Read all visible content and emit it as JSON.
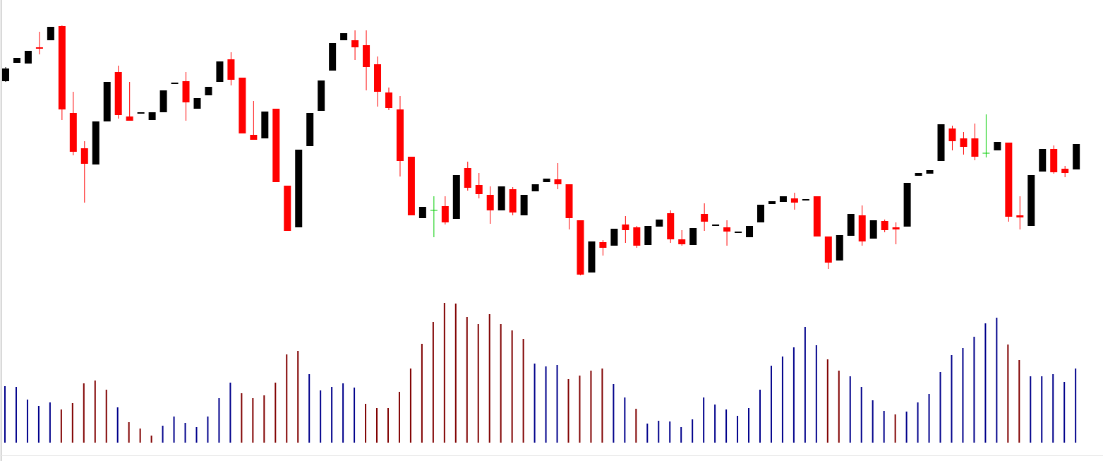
{
  "chart_data": [
    {
      "type": "candlestick",
      "open": [
        538,
        564,
        563,
        586,
        596,
        616,
        493,
        443,
        420,
        481,
        551,
        488,
        493,
        483,
        494,
        535,
        538,
        499,
        518,
        537,
        569,
        543,
        462,
        457,
        499,
        390,
        331,
        446,
        496,
        553,
        596,
        596,
        589,
        562,
        522,
        498,
        431,
        344,
        355,
        361,
        343,
        415,
        391,
        377,
        355,
        385,
        348,
        382,
        395,
        399,
        392,
        341,
        267,
        310,
        305,
        335,
        331,
        306,
        332,
        351,
        314,
        306,
        350,
        333,
        331,
        324,
        317,
        338,
        364,
        367,
        372,
        370,
        375,
        318,
        284,
        319,
        348,
        315,
        340,
        331,
        332,
        404,
        407,
        425,
        471,
        457,
        457,
        436,
        440,
        451,
        348,
        333,
        410,
        442,
        414,
        413
      ],
      "high": [
        558,
        571,
        581,
        608,
        615,
        617,
        523,
        453,
        481,
        537,
        560,
        537,
        494,
        494,
        525,
        536,
        551,
        514,
        530,
        566,
        579,
        543,
        510,
        495,
        499,
        390,
        441,
        493,
        539,
        592,
        606,
        610,
        610,
        573,
        529,
        517,
        431,
        360,
        375,
        375,
        405,
        424,
        408,
        389,
        389,
        388,
        377,
        392,
        400,
        422,
        392,
        341,
        311,
        313,
        329,
        347,
        333,
        333,
        342,
        355,
        327,
        330,
        365,
        335,
        341,
        325,
        333,
        363,
        368,
        375,
        380,
        371,
        375,
        318,
        320,
        350,
        362,
        341,
        342,
        338,
        394,
        408,
        412,
        477,
        475,
        466,
        478,
        491,
        452,
        451,
        375,
        405,
        442,
        447,
        418,
        449
      ],
      "low": [
        537,
        564,
        563,
        576,
        596,
        483,
        433,
        366,
        420,
        481,
        485,
        482,
        493,
        483,
        494,
        535,
        482,
        499,
        518,
        537,
        532,
        464,
        455,
        457,
        395,
        326,
        331,
        446,
        496,
        553,
        596,
        568,
        525,
        502,
        497,
        403,
        348,
        344,
        317,
        335,
        343,
        383,
        372,
        336,
        355,
        348,
        348,
        382,
        395,
        385,
        328,
        263,
        267,
        291,
        305,
        309,
        302,
        306,
        332,
        309,
        305,
        306,
        326,
        333,
        305,
        324,
        317,
        338,
        364,
        367,
        356,
        370,
        318,
        272,
        284,
        319,
        305,
        315,
        324,
        307,
        332,
        404,
        407,
        425,
        440,
        434,
        426,
        430,
        440,
        339,
        328,
        333,
        410,
        407,
        402,
        413
      ],
      "close": [
        556,
        571,
        581,
        584,
        615,
        498,
        438,
        421,
        481,
        537,
        490,
        482,
        494,
        494,
        525,
        536,
        508,
        514,
        530,
        566,
        540,
        464,
        455,
        495,
        395,
        326,
        441,
        493,
        539,
        592,
        606,
        586,
        558,
        523,
        500,
        425,
        348,
        360,
        355,
        338,
        405,
        387,
        378,
        355,
        389,
        352,
        377,
        392,
        400,
        392,
        344,
        264,
        311,
        302,
        329,
        327,
        305,
        333,
        342,
        314,
        307,
        330,
        339,
        335,
        325,
        325,
        333,
        363,
        368,
        375,
        366,
        371,
        318,
        281,
        320,
        350,
        311,
        341,
        327,
        328,
        394,
        408,
        412,
        477,
        453,
        445,
        431,
        436,
        452,
        346,
        345,
        405,
        442,
        409,
        408,
        449
      ],
      "up_color": "#000000",
      "down_color": "#ff0000",
      "doji_color": "#00cc00",
      "ylim": [
        253,
        653
      ]
    },
    {
      "type": "bar",
      "values": [
        80,
        79,
        61,
        52,
        57,
        47,
        56,
        84,
        88,
        75,
        50,
        29,
        20,
        10,
        24,
        37,
        28,
        22,
        37,
        63,
        85,
        70,
        63,
        67,
        85,
        125,
        130,
        97,
        74,
        79,
        84,
        78,
        55,
        49,
        49,
        72,
        105,
        140,
        171,
        198,
        197,
        178,
        168,
        182,
        168,
        159,
        147,
        112,
        108,
        110,
        90,
        95,
        102,
        105,
        83,
        64,
        48,
        27,
        31,
        30,
        22,
        33,
        64,
        54,
        47,
        38,
        49,
        75,
        109,
        122,
        135,
        164,
        138,
        118,
        102,
        94,
        79,
        60,
        45,
        40,
        44,
        57,
        69,
        100,
        124,
        134,
        150,
        169,
        177,
        139,
        117,
        94,
        94,
        97,
        86,
        105
      ],
      "colors": [
        "#00008b",
        "#00008b",
        "#00008b",
        "#00008b",
        "#00008b",
        "#800000",
        "#800000",
        "#800000",
        "#800000",
        "#800000",
        "#00008b",
        "#800000",
        "#800000",
        "#800000",
        "#00008b",
        "#00008b",
        "#00008b",
        "#00008b",
        "#00008b",
        "#00008b",
        "#00008b",
        "#800000",
        "#800000",
        "#800000",
        "#800000",
        "#800000",
        "#800000",
        "#00008b",
        "#00008b",
        "#00008b",
        "#00008b",
        "#00008b",
        "#800000",
        "#800000",
        "#800000",
        "#800000",
        "#800000",
        "#800000",
        "#800000",
        "#800000",
        "#800000",
        "#800000",
        "#800000",
        "#800000",
        "#800000",
        "#800000",
        "#800000",
        "#00008b",
        "#00008b",
        "#00008b",
        "#800000",
        "#800000",
        "#800000",
        "#800000",
        "#00008b",
        "#00008b",
        "#800000",
        "#00008b",
        "#00008b",
        "#00008b",
        "#00008b",
        "#00008b",
        "#00008b",
        "#00008b",
        "#00008b",
        "#00008b",
        "#00008b",
        "#00008b",
        "#00008b",
        "#00008b",
        "#00008b",
        "#00008b",
        "#00008b",
        "#800000",
        "#800000",
        "#00008b",
        "#00008b",
        "#00008b",
        "#00008b",
        "#800000",
        "#00008b",
        "#00008b",
        "#00008b",
        "#00008b",
        "#00008b",
        "#00008b",
        "#00008b",
        "#00008b",
        "#00008b",
        "#800000",
        "#800000",
        "#00008b",
        "#00008b",
        "#00008b",
        "#00008b",
        "#00008b"
      ],
      "ylim": [
        0,
        200
      ]
    }
  ]
}
